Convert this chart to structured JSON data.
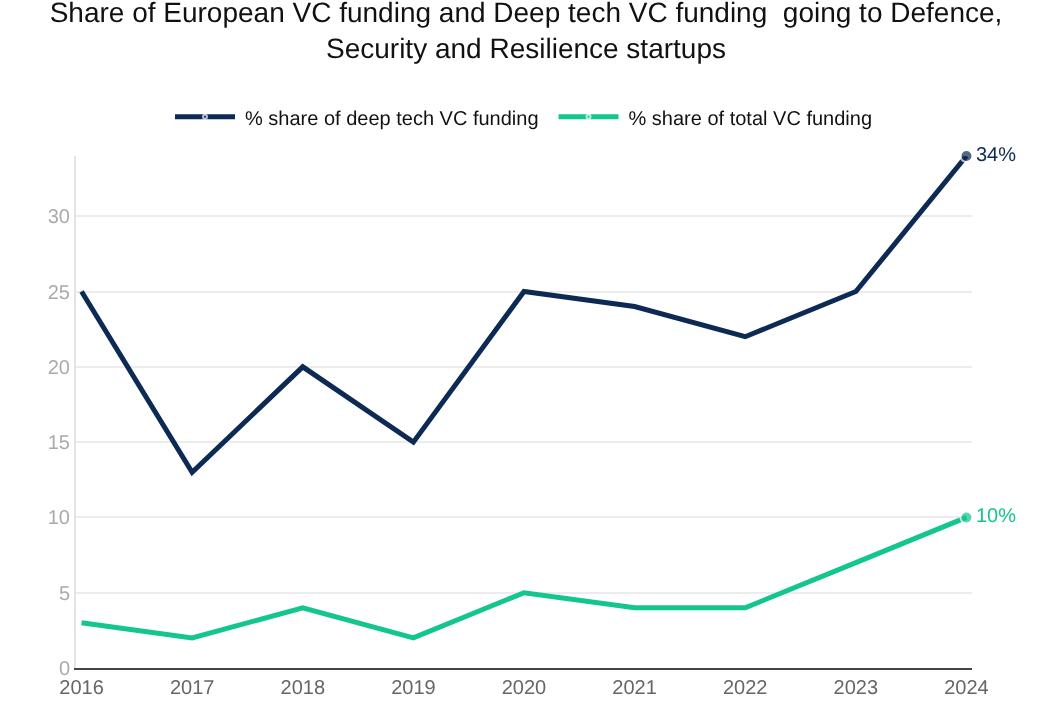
{
  "chart_data": {
    "type": "line",
    "title": "Share of European VC funding and Deep tech VC funding  going to Defence, Security and Resilience startups",
    "categories": [
      "2016",
      "2017",
      "2018",
      "2019",
      "2020",
      "2021",
      "2022",
      "2023",
      "2024"
    ],
    "series": [
      {
        "name": "% share of deep tech VC funding",
        "color": "#0d2a54",
        "values": [
          25,
          13,
          20,
          15,
          25,
          24,
          22,
          25,
          34
        ],
        "value_labels": [
          null,
          null,
          null,
          null,
          null,
          null,
          null,
          null,
          "34%"
        ]
      },
      {
        "name": "% share of total VC funding",
        "color": "#13c68e",
        "values": [
          3,
          2,
          4,
          2,
          5,
          4,
          4,
          7,
          10
        ],
        "value_labels": [
          null,
          null,
          null,
          null,
          null,
          null,
          null,
          null,
          "10%"
        ]
      }
    ],
    "ylim": [
      0,
      34
    ],
    "yticks": [
      0,
      5,
      10,
      15,
      20,
      25,
      30
    ],
    "grid": "y",
    "legend": "top",
    "line_style": "solid"
  }
}
